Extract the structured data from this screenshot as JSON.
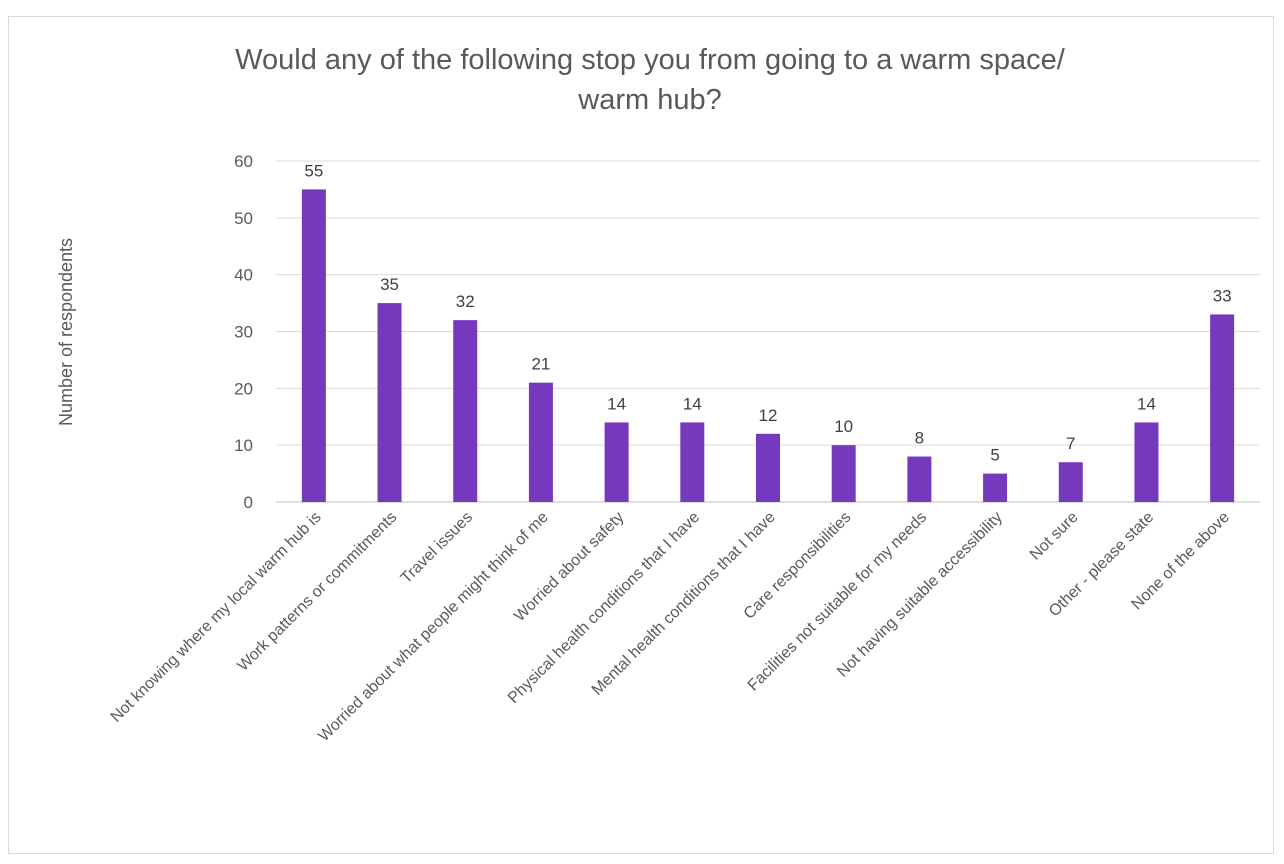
{
  "chart_data": {
    "type": "bar",
    "title": "Would any of the following stop you from going to a warm space/\nwarm hub?",
    "xlabel": "",
    "ylabel": "Number of respondents",
    "ylim": [
      0,
      60
    ],
    "yticks": [
      0,
      10,
      20,
      30,
      40,
      50,
      60
    ],
    "grid": true,
    "legend": "none",
    "bar_color": "#7639BE",
    "categories": [
      "Not knowing where my local warm hub is",
      "Work patterns or commitments",
      "Travel issues",
      "Worried about what people might think of me",
      "Worried about safety",
      "Physical health conditions that I have",
      "Mental health conditions that I have",
      "Care responsibilities",
      "Facilities not suitable for my needs",
      "Not having suitable accessibility",
      "Not sure",
      "Other  - please state",
      "None of the above"
    ],
    "values": [
      55,
      35,
      32,
      21,
      14,
      14,
      12,
      10,
      8,
      5,
      7,
      14,
      33
    ]
  }
}
